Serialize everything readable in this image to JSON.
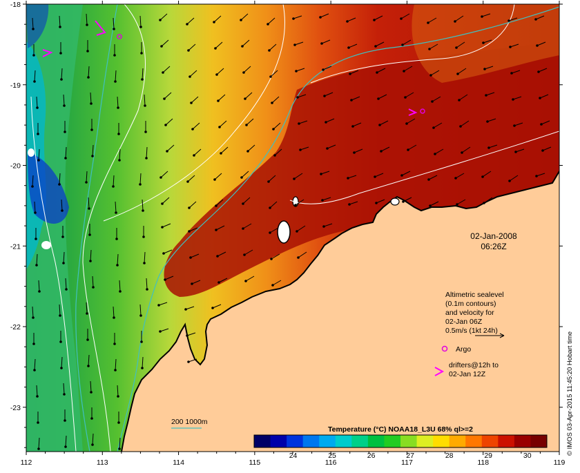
{
  "map": {
    "x_ticks": [
      "112",
      "113",
      "114",
      "115",
      "116",
      "117",
      "118",
      "119"
    ],
    "y_ticks": [
      "-18",
      "-19",
      "-20",
      "-21",
      "-22",
      "-23"
    ],
    "x_range": [
      112,
      119
    ],
    "y_range": [
      -23.55,
      -18
    ]
  },
  "date_label": {
    "line1": "02-Jan-2008",
    "line2": "06:26Z"
  },
  "legend": {
    "altimetric_lines": [
      "Altimetric sealevel",
      "(0.1m contours)",
      "and velocity for",
      "02-Jan 06Z",
      "0.5m/s (1kt 24h)"
    ],
    "argo_label": "Argo",
    "drifters_lines": [
      "drifters@12h to",
      "02-Jan 12Z"
    ],
    "isobath_label": "200  1000m",
    "argo_color": "#e000e0",
    "drifter_color": "#ff00ff",
    "isobath_color": "#40c0c0"
  },
  "colorbar": {
    "title": "Temperature (°C) NOAA18_L3U 68% ql>=2",
    "ticks": [
      "24",
      "25",
      "26",
      "27",
      "28",
      "29",
      "30"
    ],
    "range": [
      23.0,
      30.5
    ],
    "colors": [
      "#000066",
      "#0000aa",
      "#0033dd",
      "#0077ee",
      "#00aaee",
      "#00cccc",
      "#00d088",
      "#00c040",
      "#22cc22",
      "#88dd22",
      "#ddee22",
      "#ffdd00",
      "#ffaa00",
      "#ff7700",
      "#ee4400",
      "#cc1100",
      "#990000",
      "#770000"
    ]
  },
  "credit": "© IMOS 03-Apr-2015 11:45:20 Hobart time",
  "land_color": "#ffcc99",
  "coast_color": "#ffffff"
}
